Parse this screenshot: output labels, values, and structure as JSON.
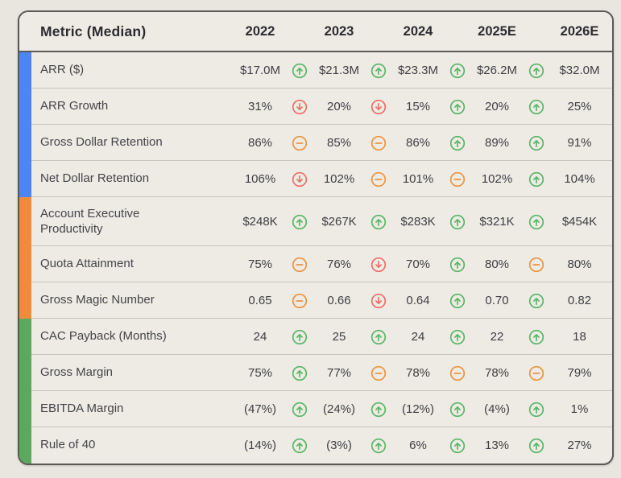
{
  "chart_data": {
    "type": "table",
    "title": "Metric (Median)",
    "columns": [
      "Metric (Median)",
      "2022",
      "2023",
      "2024",
      "2025E",
      "2026E"
    ],
    "group_colors": {
      "blue": "#4a86f4",
      "orange": "#f08a3d",
      "green": "#5aa95f"
    },
    "trend_colors": {
      "up": "#5cb567",
      "down": "#ee6f68",
      "flat": "#eb9440"
    },
    "rows": [
      {
        "label": "ARR ($)",
        "group": "blue",
        "values": [
          "$17.0M",
          "$21.3M",
          "$23.3M",
          "$26.2M",
          "$32.0M"
        ],
        "trends": [
          "up",
          "up",
          "up",
          "up"
        ]
      },
      {
        "label": "ARR Growth",
        "group": "blue",
        "values": [
          "31%",
          "20%",
          "15%",
          "20%",
          "25%"
        ],
        "trends": [
          "down",
          "down",
          "up",
          "up"
        ]
      },
      {
        "label": "Gross Dollar Retention",
        "group": "blue",
        "values": [
          "86%",
          "85%",
          "86%",
          "89%",
          "91%"
        ],
        "trends": [
          "flat",
          "flat",
          "up",
          "up"
        ]
      },
      {
        "label": "Net Dollar Retention",
        "group": "blue",
        "values": [
          "106%",
          "102%",
          "101%",
          "102%",
          "104%"
        ],
        "trends": [
          "down",
          "flat",
          "flat",
          "up"
        ]
      },
      {
        "label": "Account Executive Productivity",
        "group": "orange",
        "values": [
          "$248K",
          "$267K",
          "$283K",
          "$321K",
          "$454K"
        ],
        "trends": [
          "up",
          "up",
          "up",
          "up"
        ],
        "tall": true
      },
      {
        "label": "Quota Attainment",
        "group": "orange",
        "values": [
          "75%",
          "76%",
          "70%",
          "80%",
          "80%"
        ],
        "trends": [
          "flat",
          "down",
          "up",
          "flat"
        ]
      },
      {
        "label": "Gross Magic Number",
        "group": "orange",
        "values": [
          "0.65",
          "0.66",
          "0.64",
          "0.70",
          "0.82"
        ],
        "trends": [
          "flat",
          "down",
          "up",
          "up"
        ]
      },
      {
        "label": "CAC Payback (Months)",
        "group": "green",
        "values": [
          "24",
          "25",
          "24",
          "22",
          "18"
        ],
        "trends": [
          "up",
          "up",
          "up",
          "up"
        ]
      },
      {
        "label": "Gross Margin",
        "group": "green",
        "values": [
          "75%",
          "77%",
          "78%",
          "78%",
          "79%"
        ],
        "trends": [
          "up",
          "flat",
          "flat",
          "flat"
        ]
      },
      {
        "label": "EBITDA Margin",
        "group": "green",
        "values": [
          "(47%)",
          "(24%)",
          "(12%)",
          "(4%)",
          "1%"
        ],
        "trends": [
          "up",
          "up",
          "up",
          "up"
        ]
      },
      {
        "label": "Rule of 40",
        "group": "green",
        "values": [
          "(14%)",
          "(3%)",
          "6%",
          "13%",
          "27%"
        ],
        "trends": [
          "up",
          "up",
          "up",
          "up"
        ]
      }
    ]
  }
}
